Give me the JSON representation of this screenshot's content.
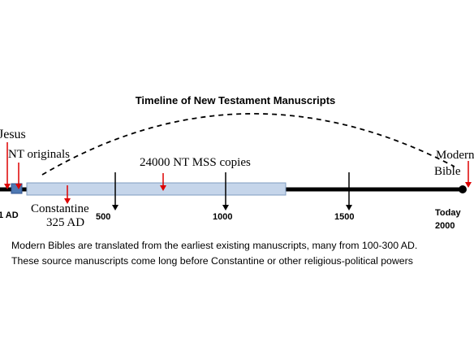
{
  "title": "Timeline of New Testament Manuscripts",
  "timeline": {
    "start": "1 AD",
    "ticks": [
      "500",
      "1000",
      "1500"
    ],
    "end": [
      "Today",
      "2000"
    ]
  },
  "annotations": {
    "jesus": "Jesus",
    "originals": "NT originals",
    "copies": "24000 NT MSS copies",
    "constantine": [
      "Constantine",
      "325 AD"
    ],
    "modern": [
      "Modern",
      "Bible"
    ]
  },
  "caption": [
    "Modern Bibles are translated from the earliest existing manuscripts, many from 100-300 AD.",
    "These source manuscripts come long before Constantine or other religious-political powers"
  ]
}
